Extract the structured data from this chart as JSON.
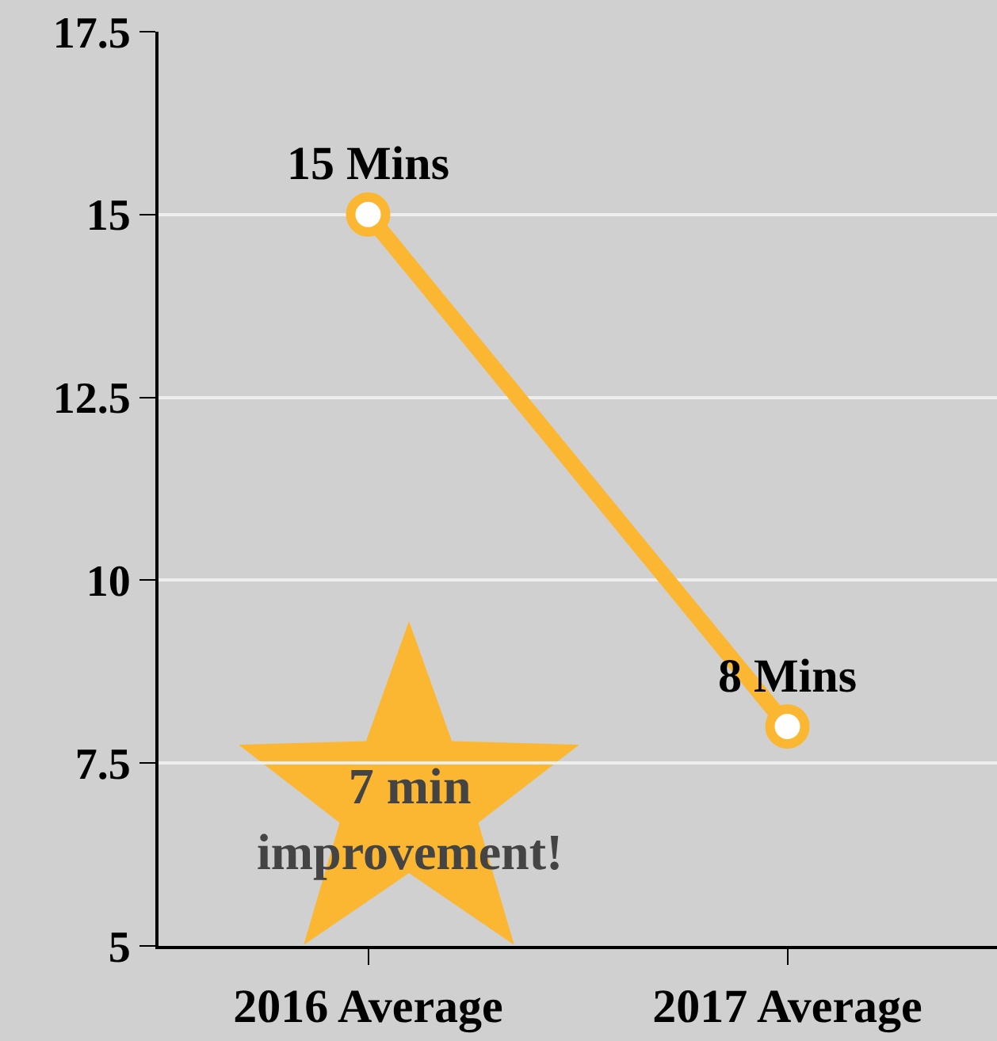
{
  "chart_data": {
    "type": "line",
    "categories": [
      "2016 Average",
      "2017 Average"
    ],
    "series": [
      {
        "color": "#fbb731",
        "values": [
          15,
          8
        ],
        "value_labels": [
          "15 Mins",
          "8 Mins"
        ]
      }
    ],
    "ylim": [
      5,
      17.5
    ],
    "yticks": [
      5,
      7.5,
      10,
      12.5,
      15,
      17.5
    ],
    "grid": "y",
    "marker": "circle",
    "line_style": "solid",
    "annotations": [
      "7 min\nimprovement!"
    ]
  }
}
